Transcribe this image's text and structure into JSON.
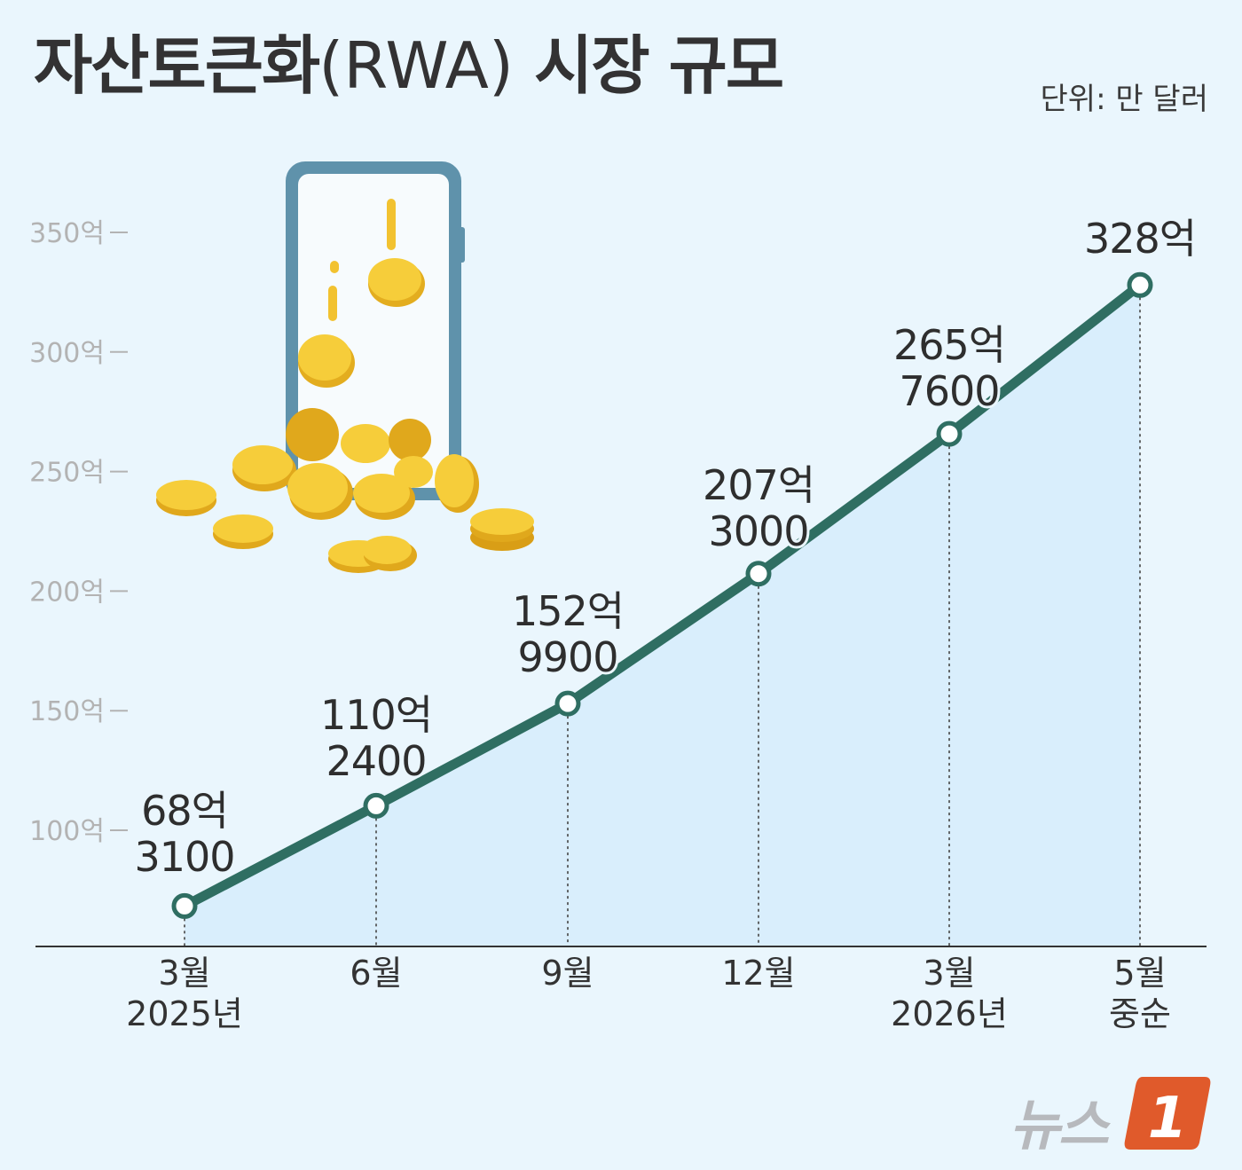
{
  "header": {
    "title": "자산토큰화",
    "title_paren": "(RWA)",
    "title_tail": "시장 규모",
    "unit": "단위: 만 달러"
  },
  "brand": {
    "name": "뉴스",
    "mark": "1"
  },
  "colors": {
    "background": "#eaf6fd",
    "line": "#2f6e62",
    "area": "#d6ecfb",
    "coin": "#f2c230",
    "phone_frame": "#6b9db5",
    "brand_accent": "#e05a2b"
  },
  "illustration": "phone-with-falling-gold-coins",
  "chart_data": {
    "type": "area",
    "title": "자산토큰화(RWA) 시장 규모",
    "unit": "단위: 만 달러",
    "x": [
      "2025-03",
      "2025-06",
      "2025-09",
      "2025-12",
      "2026-03",
      "2026-05 중순"
    ],
    "x_tick_labels": [
      [
        "3월",
        "2025년"
      ],
      [
        "6월"
      ],
      [
        "9월"
      ],
      [
        "12월"
      ],
      [
        "3월",
        "2026년"
      ],
      [
        "5월",
        "중순"
      ]
    ],
    "values": [
      6831,
      11024,
      15299,
      20730,
      26576,
      32800
    ],
    "value_labels": [
      [
        "68억",
        "3100"
      ],
      [
        "110억",
        "2400"
      ],
      [
        "152억",
        "9900"
      ],
      [
        "207억",
        "3000"
      ],
      [
        "265억",
        "7600"
      ],
      [
        "328억"
      ]
    ],
    "y_ticks": [
      10000,
      15000,
      20000,
      25000,
      30000,
      35000
    ],
    "y_tick_labels": [
      "100억",
      "150억",
      "200억",
      "250억",
      "300억",
      "350억"
    ],
    "ylim": [
      4000,
      36000
    ],
    "grid": false,
    "legend": "none"
  }
}
